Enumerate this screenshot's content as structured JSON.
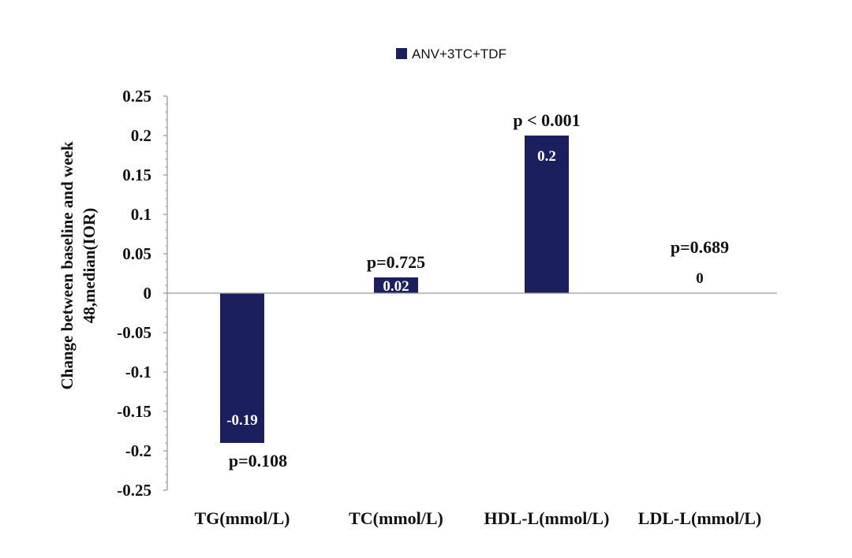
{
  "chart_data": {
    "type": "bar",
    "categories": [
      "TG(mmol/L)",
      "TC(mmol/L)",
      "HDL-L(mmol/L)",
      "LDL-L(mmol/L)"
    ],
    "series": [
      {
        "name": "ANV+3TC+TDF",
        "values": [
          -0.19,
          0.02,
          0.2,
          0
        ]
      }
    ],
    "data_labels": [
      "-0.19",
      "0.02",
      "0.2",
      "0"
    ],
    "p_values": [
      "p=0.108",
      "p=0.725",
      "p < 0.001",
      "p=0.689"
    ],
    "ylabel_lines": [
      "Change between baseline and week",
      "48,median(IOR)"
    ],
    "ylim": [
      -0.25,
      0.25
    ],
    "yticks": [
      0.25,
      0.2,
      0.15,
      0.1,
      0.05,
      0,
      -0.05,
      -0.1,
      -0.15,
      -0.2,
      -0.25
    ],
    "ytick_labels": [
      "0.25",
      "0.2",
      "0.15",
      "0.1",
      "0.05",
      "0",
      "-0.05",
      "-0.1",
      "-0.15",
      "-0.2",
      "-0.25"
    ],
    "legend_position": "top-center",
    "grid": false,
    "colors": {
      "bar": "#1c1f5e",
      "axis": "#9a9a9a",
      "bar_label": "#ffffff",
      "zero_label": "#111111"
    }
  }
}
